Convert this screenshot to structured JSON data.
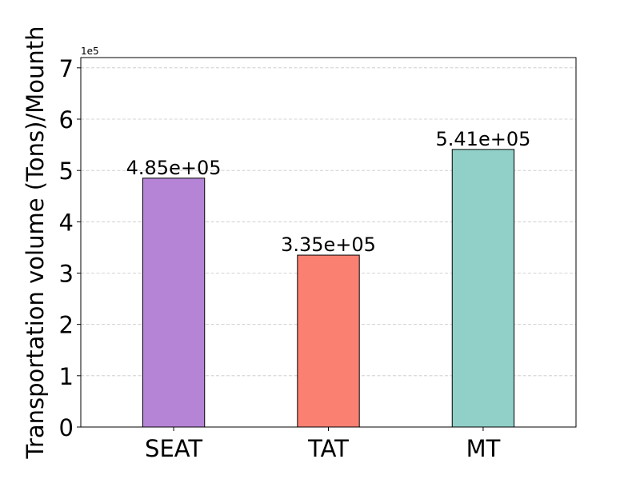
{
  "chart_data": {
    "type": "bar",
    "title": "",
    "xlabel": "",
    "ylabel": "Transportation volume (Tons)/Mounth",
    "categories": [
      "SEAT",
      "TAT",
      "MT"
    ],
    "values": [
      485000,
      335000,
      541000
    ],
    "value_labels": [
      "4.85e+05",
      "3.35e+05",
      "5.41e+05"
    ],
    "colors": [
      "#b584d6",
      "#fa8072",
      "#91d0c8"
    ],
    "bar_edge_color": "#000000",
    "ylim": [
      0,
      720000
    ],
    "yticks": [
      0,
      100000,
      200000,
      300000,
      400000,
      500000,
      600000,
      700000
    ],
    "ytick_labels": [
      "0",
      "1",
      "2",
      "3",
      "4",
      "5",
      "6",
      "7"
    ],
    "y_offset_label": "1e5",
    "grid": {
      "axis": "y",
      "style": "dashed",
      "color": "#c8c8c8"
    },
    "legend": "none"
  }
}
